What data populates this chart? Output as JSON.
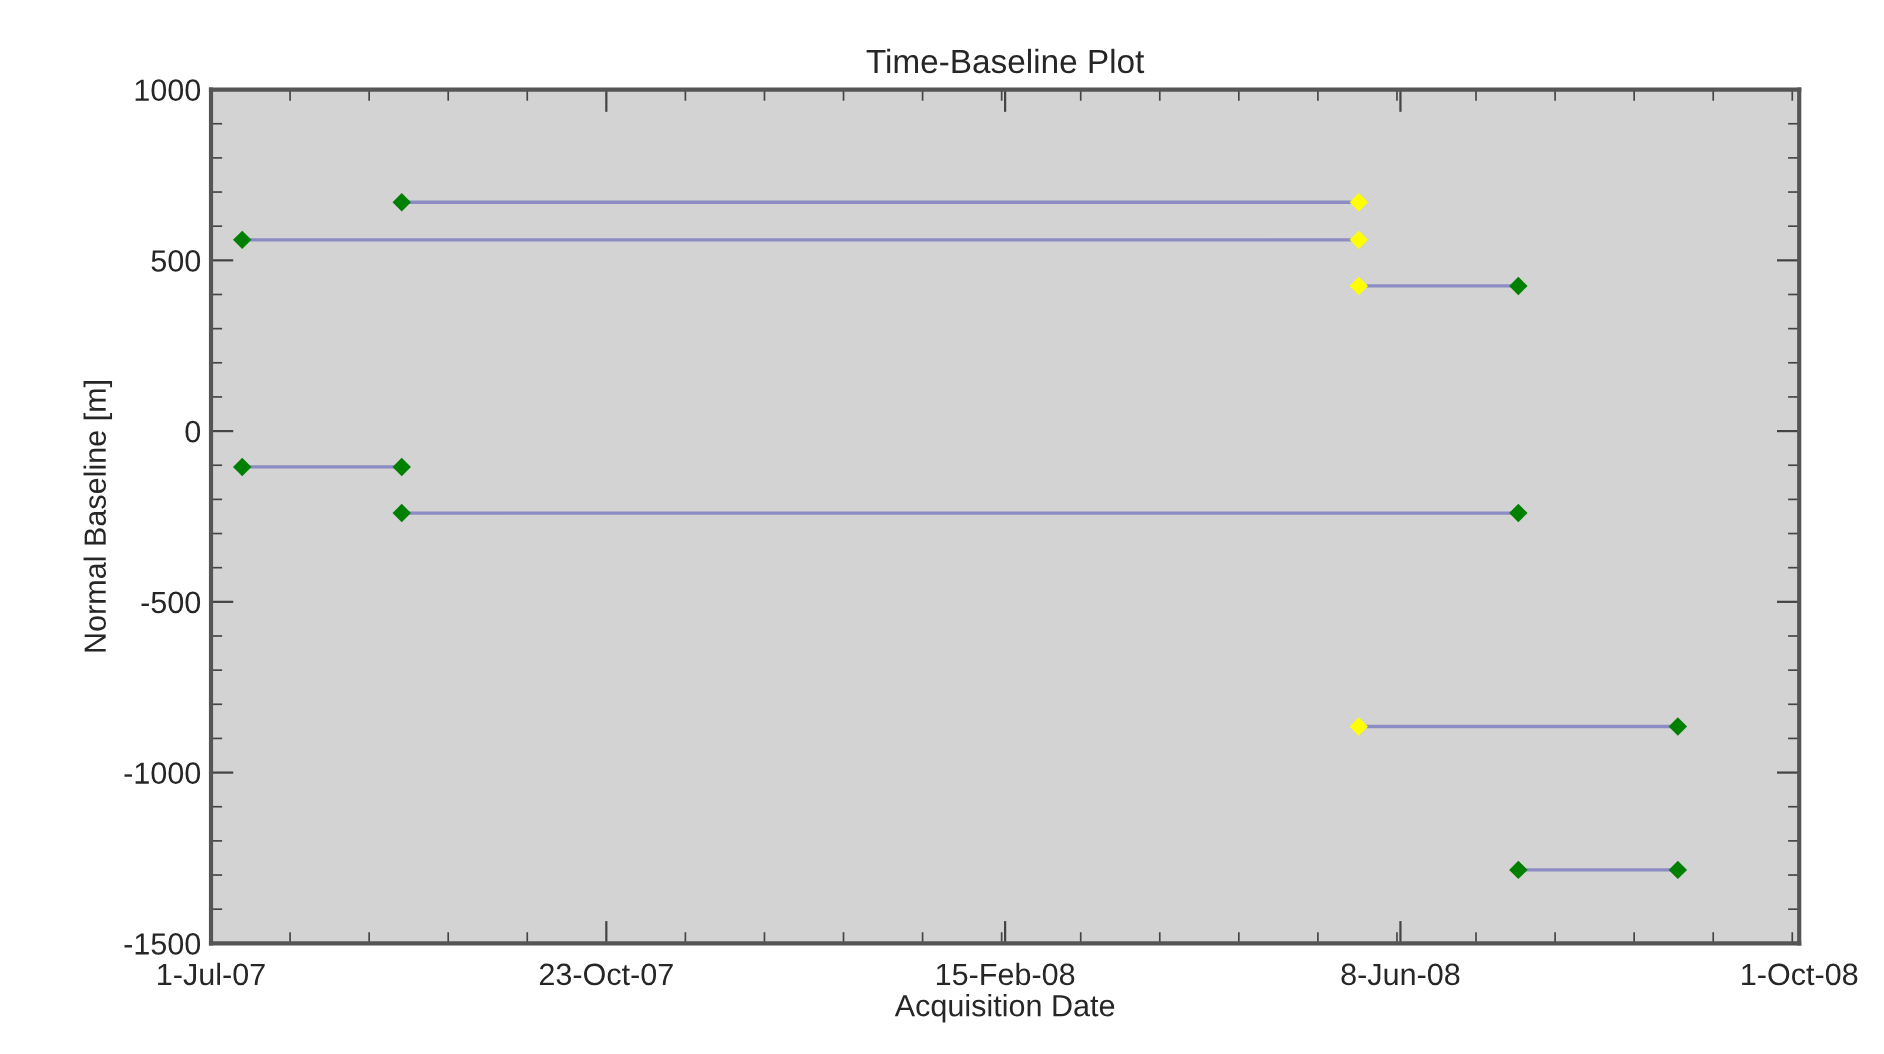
{
  "chart_data": {
    "type": "line",
    "title": "Time-Baseline Plot",
    "xlabel": "Acquisition Date",
    "ylabel": "Normal Baseline [m]",
    "xlim": [
      "2007-07-01",
      "2008-10-01"
    ],
    "xticks": [
      {
        "value": "2007-07-01",
        "label": "1-Jul-07"
      },
      {
        "value": "2007-10-23",
        "label": "23-Oct-07"
      },
      {
        "value": "2008-02-15",
        "label": "15-Feb-08"
      },
      {
        "value": "2008-06-08",
        "label": "8-Jun-08"
      },
      {
        "value": "2008-10-01",
        "label": "1-Oct-08"
      }
    ],
    "ylim": [
      -1500,
      1000
    ],
    "yticks": [
      -1500,
      -1000,
      -500,
      0,
      500,
      1000
    ],
    "grid": false,
    "marker": "diamond",
    "line_style": "solid",
    "series": [
      {
        "color": "#8c8cc4",
        "x": [
          "2007-08-25",
          "2008-05-27"
        ],
        "values": [
          670,
          670
        ],
        "colors": [
          "#008000",
          "#ffff00"
        ]
      },
      {
        "color": "#8c8cc4",
        "x": [
          "2007-07-10",
          "2008-05-27"
        ],
        "values": [
          560,
          560
        ],
        "colors": [
          "#008000",
          "#ffff00"
        ]
      },
      {
        "color": "#8c8cc4",
        "x": [
          "2008-05-27",
          "2008-07-12"
        ],
        "values": [
          425,
          425
        ],
        "colors": [
          "#ffff00",
          "#008000"
        ]
      },
      {
        "color": "#8c8cc4",
        "x": [
          "2007-07-10",
          "2007-08-25"
        ],
        "values": [
          -105,
          -105
        ],
        "colors": [
          "#008000",
          "#008000"
        ]
      },
      {
        "color": "#8c8cc4",
        "x": [
          "2007-08-25",
          "2008-07-12"
        ],
        "values": [
          -240,
          -240
        ],
        "colors": [
          "#008000",
          "#008000"
        ]
      },
      {
        "color": "#8c8cc4",
        "x": [
          "2008-05-27",
          "2008-08-27"
        ],
        "values": [
          -865,
          -865
        ],
        "colors": [
          "#ffff00",
          "#008000"
        ]
      },
      {
        "color": "#8c8cc4",
        "x": [
          "2008-07-12",
          "2008-08-27"
        ],
        "values": [
          -1285,
          -1285
        ],
        "colors": [
          "#008000",
          "#008000"
        ]
      }
    ]
  }
}
